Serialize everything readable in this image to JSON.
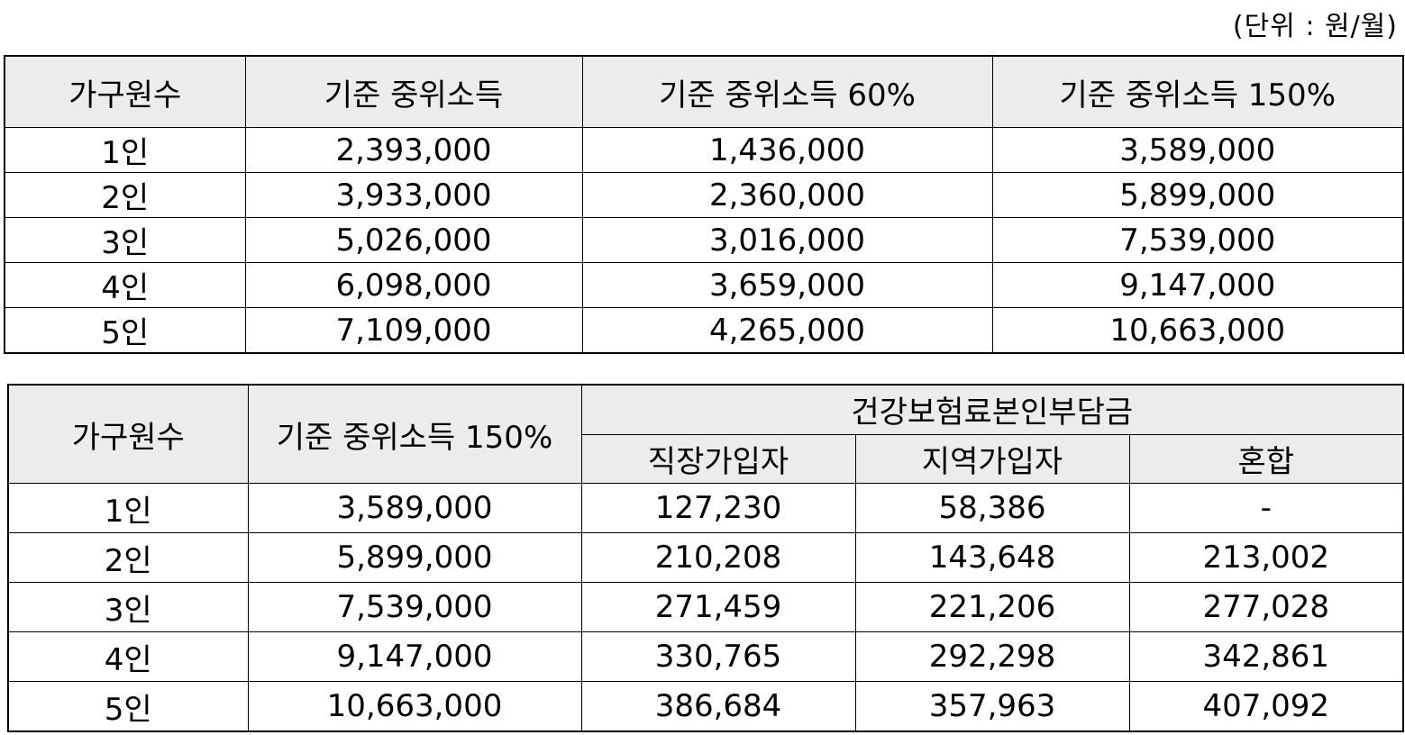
{
  "unit_note": "(단위 : 원/월)",
  "table1": {
    "headers": [
      "가구원수",
      "기준 중위소득",
      "기준 중위소득 60%",
      "기준 중위소득 150%"
    ],
    "rows": [
      [
        "1인",
        "2,393,000",
        "1,436,000",
        "3,589,000"
      ],
      [
        "2인",
        "3,933,000",
        "2,360,000",
        "5,899,000"
      ],
      [
        "3인",
        "5,026,000",
        "3,016,000",
        "7,539,000"
      ],
      [
        "4인",
        "6,098,000",
        "3,659,000",
        "9,147,000"
      ],
      [
        "5인",
        "7,109,000",
        "4,265,000",
        "10,663,000"
      ]
    ]
  },
  "table2": {
    "header_household": "가구원수",
    "header_income": "기준 중위소득 150%",
    "header_group": "건강보험료본인부담금",
    "subheaders": [
      "직장가입자",
      "지역가입자",
      "혼합"
    ],
    "rows": [
      [
        "1인",
        "3,589,000",
        "127,230",
        "58,386",
        "-"
      ],
      [
        "2인",
        "5,899,000",
        "210,208",
        "143,648",
        "213,002"
      ],
      [
        "3인",
        "7,539,000",
        "271,459",
        "221,206",
        "277,028"
      ],
      [
        "4인",
        "9,147,000",
        "330,765",
        "292,298",
        "342,861"
      ],
      [
        "5인",
        "10,663,000",
        "386,684",
        "357,963",
        "407,092"
      ]
    ]
  }
}
